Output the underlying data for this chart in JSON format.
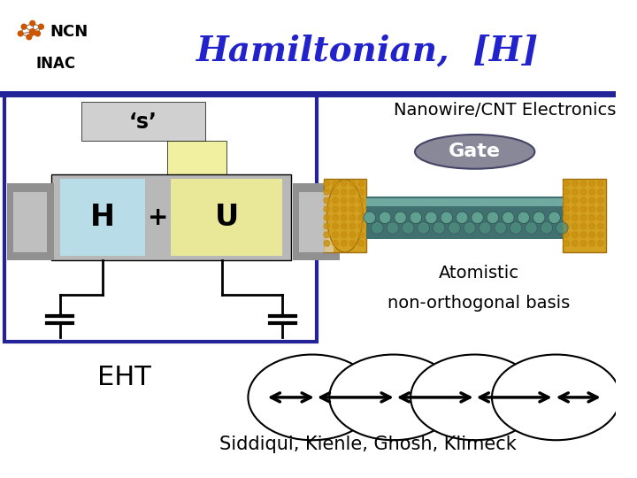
{
  "title": "Hamiltonian,  [H]",
  "title_color": "#2222cc",
  "ncn_text": "NCN",
  "inac_text": "INAC",
  "nanowire_text": "Nanowire/CNT Electronics",
  "gate_text": "Gate",
  "s_text": "‘s’",
  "h_text": "H",
  "plus_text": "+",
  "u_text": "U",
  "atomistic_text": "Atomistic",
  "nonortho_text": "non-orthogonal basis",
  "eht_text": "EHT",
  "authors_text": "Siddiqui, Kienle, Ghosh, Klimeck",
  "divider_color": "#222299",
  "gate_bg": "#888899",
  "s_bg": "#cccccc",
  "h_bg": "#b8dce8",
  "u_bg": "#e8e898",
  "main_bg": "#aaaaaa",
  "electrode_bg": "#888888",
  "white": "#ffffff",
  "border_color": "#222299"
}
